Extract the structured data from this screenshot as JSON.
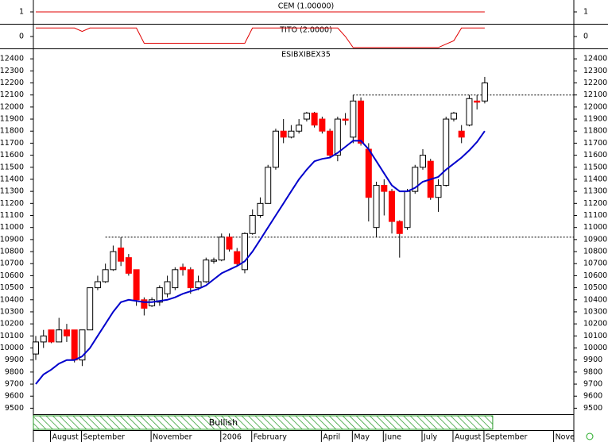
{
  "chart_data": [
    {
      "type": "line",
      "title": "CEM (1.00000)",
      "ylim": [
        0,
        2
      ],
      "yticks": [
        1
      ],
      "series": [
        {
          "color": "#e00000",
          "values": [
            1,
            1,
            1,
            1,
            1,
            1,
            1,
            1,
            1,
            1,
            1,
            1,
            1,
            1,
            1,
            1,
            1,
            1,
            1,
            1,
            1,
            1,
            1,
            1,
            1,
            1,
            1,
            1,
            1,
            1,
            1,
            1,
            1,
            1,
            1,
            1,
            1,
            1,
            1,
            1,
            1,
            1,
            1,
            1,
            1,
            1,
            1,
            1,
            1,
            1,
            1,
            1,
            1,
            1,
            1,
            1,
            1,
            1,
            1,
            null,
            null,
            null,
            null,
            null,
            null,
            null,
            null,
            null,
            null,
            null
          ]
        }
      ]
    },
    {
      "type": "line",
      "title": "TITO (2.0000)",
      "ylim": [
        -1.5,
        1.5
      ],
      "yticks": [
        0
      ],
      "series": [
        {
          "color": "#e00000",
          "values": [
            1,
            1,
            1,
            1,
            1,
            1,
            0.6,
            1,
            1,
            1,
            1,
            1,
            1,
            1,
            -0.8,
            -0.8,
            -0.8,
            -0.8,
            -0.8,
            -0.8,
            -0.8,
            -0.8,
            -0.8,
            -0.8,
            -0.8,
            -0.8,
            -0.8,
            -0.8,
            1,
            1,
            1,
            1,
            1,
            1,
            1,
            1,
            1,
            1,
            1,
            1,
            0,
            -1.3,
            -1.3,
            -1.3,
            -1.3,
            -1.3,
            -1.3,
            -1.3,
            -1.3,
            -1.3,
            -1.3,
            -1.3,
            -1.3,
            -0.9,
            -0.5,
            1,
            1,
            1,
            1,
            null,
            null,
            null,
            null,
            null,
            null,
            null,
            null,
            null,
            null,
            null
          ]
        }
      ]
    },
    {
      "type": "candlestick",
      "title": "ESIBXIBEX35",
      "ylim": [
        9450,
        12480
      ],
      "yticks": [
        9500,
        9600,
        9700,
        9800,
        9900,
        10000,
        10100,
        10200,
        10300,
        10400,
        10500,
        10600,
        10700,
        10800,
        10900,
        11000,
        11100,
        11200,
        11300,
        11400,
        11500,
        11600,
        11700,
        11800,
        11900,
        12000,
        12100,
        12200,
        12300,
        12400
      ],
      "categories": [
        null,
        null,
        "August",
        null,
        null,
        null,
        "September",
        null,
        null,
        null,
        null,
        null,
        null,
        null,
        null,
        "November",
        null,
        null,
        null,
        null,
        null,
        null,
        null,
        null,
        "2006",
        null,
        null,
        null,
        "February",
        null,
        null,
        null,
        null,
        null,
        null,
        null,
        null,
        "April",
        null,
        null,
        null,
        "May",
        null,
        null,
        null,
        "June",
        null,
        null,
        null,
        null,
        "July",
        null,
        null,
        null,
        "August",
        null,
        null,
        null,
        "September",
        null,
        null,
        null,
        null,
        null,
        null,
        null,
        null,
        "Nove",
        null,
        null
      ],
      "up_color": "#ffffff",
      "down_color": "#ff0000",
      "open": [
        9950,
        10050,
        10150,
        10050,
        10150,
        10150,
        9900,
        10150,
        10500,
        10550,
        10650,
        10830,
        10750,
        10650,
        10400,
        10350,
        10380,
        10450,
        10500,
        10670,
        10650,
        10500,
        10550,
        10720,
        10730,
        10920,
        10800,
        10650,
        10950,
        11100,
        11200,
        11500,
        11800,
        11750,
        11800,
        11900,
        11950,
        11900,
        11800,
        11600,
        11900,
        11750,
        12050,
        11650,
        11000,
        11350,
        11300,
        11050,
        11000,
        11300,
        11500,
        11550,
        11250,
        11350,
        11900,
        11800,
        11850,
        12050,
        12050,
        null,
        null,
        null,
        null,
        null,
        null,
        null,
        null,
        null,
        null,
        null
      ],
      "high": [
        10100,
        10150,
        10150,
        10250,
        10200,
        10150,
        10150,
        10500,
        10600,
        10700,
        10850,
        10920,
        10780,
        10650,
        10420,
        10420,
        10520,
        10600,
        10670,
        10700,
        10670,
        10600,
        10750,
        10750,
        10950,
        10950,
        10830,
        10960,
        11150,
        11250,
        11520,
        11820,
        11900,
        11850,
        11900,
        11960,
        11960,
        11920,
        11820,
        11920,
        11950,
        12100,
        12080,
        11700,
        11380,
        11400,
        11320,
        11060,
        11320,
        11520,
        11650,
        11570,
        11400,
        11920,
        11960,
        11850,
        12100,
        12100,
        12250,
        null,
        null,
        null,
        null,
        null,
        null,
        null,
        null,
        null,
        null,
        null
      ],
      "low": [
        9900,
        10000,
        10040,
        10050,
        10050,
        9880,
        9850,
        10150,
        10480,
        10540,
        10640,
        10680,
        10600,
        10350,
        10270,
        10340,
        10350,
        10420,
        10480,
        10600,
        10450,
        10480,
        10540,
        10700,
        10720,
        10800,
        10680,
        10620,
        10940,
        11080,
        11200,
        11480,
        11700,
        11740,
        11780,
        11880,
        11830,
        11780,
        11580,
        11550,
        11850,
        11700,
        11680,
        11050,
        10920,
        11100,
        10950,
        10750,
        10980,
        11280,
        11480,
        11230,
        11130,
        11340,
        11880,
        11700,
        11840,
        11980,
        12030,
        null,
        null,
        null,
        null,
        null,
        null,
        null,
        null,
        null,
        null,
        null
      ],
      "close": [
        10050,
        10100,
        10050,
        10150,
        10100,
        9900,
        10150,
        10500,
        10550,
        10650,
        10800,
        10720,
        10620,
        10400,
        10330,
        10400,
        10500,
        10550,
        10650,
        10650,
        10500,
        10550,
        10730,
        10730,
        10920,
        10820,
        10700,
        10950,
        11100,
        11200,
        11500,
        11800,
        11750,
        11800,
        11850,
        11950,
        11850,
        11800,
        11600,
        11900,
        11890,
        12050,
        11700,
        11250,
        11350,
        11300,
        11050,
        10950,
        11300,
        11500,
        11600,
        11250,
        11350,
        11900,
        11950,
        11750,
        12070,
        12040,
        12200,
        null,
        null,
        null,
        null,
        null,
        null,
        null,
        null,
        null,
        null,
        null
      ],
      "overlays": [
        {
          "color": "#0000cc",
          "values": [
            9700,
            9780,
            9820,
            9870,
            9900,
            9900,
            9930,
            10000,
            10100,
            10200,
            10300,
            10380,
            10400,
            10390,
            10380,
            10380,
            10390,
            10400,
            10420,
            10450,
            10470,
            10490,
            10520,
            10570,
            10620,
            10650,
            10680,
            10720,
            10800,
            10900,
            11000,
            11100,
            11200,
            11300,
            11400,
            11480,
            11550,
            11570,
            11580,
            11620,
            11670,
            11720,
            11720,
            11650,
            11550,
            11450,
            11350,
            11300,
            11300,
            11330,
            11380,
            11400,
            11420,
            11480,
            11530,
            11580,
            11640,
            11710,
            11800,
            null,
            null,
            null,
            null,
            null,
            null,
            null,
            null,
            null,
            null,
            null
          ]
        }
      ],
      "hlines": [
        {
          "value": 10920,
          "from": 9
        },
        {
          "value": 12100,
          "from": 41
        }
      ],
      "band": {
        "label": "Bullish",
        "color": "#2a9a2a"
      }
    }
  ]
}
